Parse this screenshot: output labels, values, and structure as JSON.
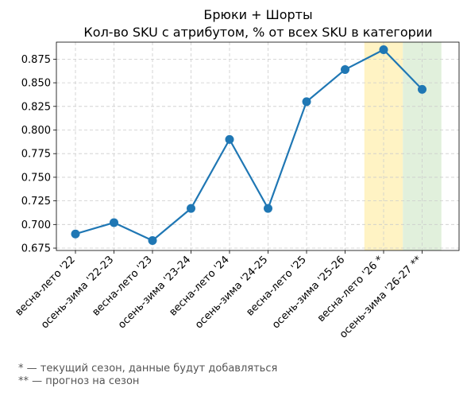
{
  "chart_data": {
    "type": "line",
    "title": "Брюки + Шорты",
    "subtitle": "Кол-во SKU с атрибутом, % от всех SKU в категории",
    "xlabel": "",
    "ylabel": "",
    "categories": [
      "весна-лето '22",
      "осень-зима '22-23",
      "весна-лето '23",
      "осень-зима '23-24",
      "весна-лето '24",
      "осень-зима '24-25",
      "весна-лето '25",
      "осень-зима '25-26",
      "весна-лето '26 *",
      "осень-зима '26-27 **"
    ],
    "series": [
      {
        "values": [
          0.69,
          0.702,
          0.683,
          0.717,
          0.79,
          0.717,
          0.83,
          0.864,
          0.885,
          0.843
        ]
      }
    ],
    "yticks": [
      "0.675",
      "0.700",
      "0.725",
      "0.750",
      "0.775",
      "0.800",
      "0.825",
      "0.850",
      "0.875"
    ],
    "ylim": [
      0.6725,
      0.893
    ],
    "grid": true,
    "highlights": [
      {
        "category_index": 8,
        "color": "#fff3c4"
      },
      {
        "category_index": 9,
        "color": "#e1f0dc"
      }
    ],
    "line_color": "#1f77b4"
  },
  "notes": [
    "* — текущий сезон, данные будут добавляться",
    "** — прогноз на сезон"
  ]
}
